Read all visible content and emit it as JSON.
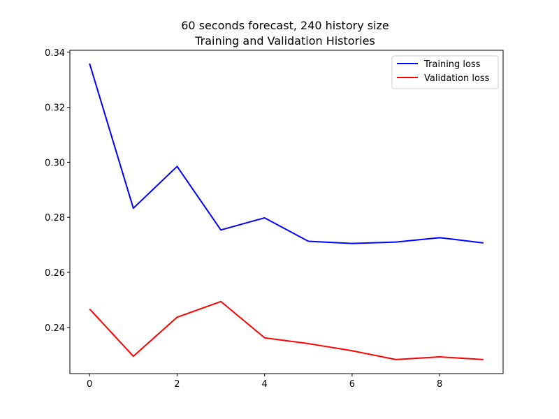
{
  "chart_data": {
    "type": "line",
    "title": "60 seconds forecast, 240 history size",
    "subtitle": "Training and Validation Histories",
    "xlabel": "",
    "ylabel": "",
    "x": [
      0,
      1,
      2,
      3,
      4,
      5,
      6,
      7,
      8,
      9
    ],
    "xlim": [
      -0.45,
      9.45
    ],
    "ylim": [
      0.2232,
      0.3407
    ],
    "x_ticks": [
      0,
      2,
      4,
      6,
      8
    ],
    "x_tick_labels": [
      "0",
      "2",
      "4",
      "6",
      "8"
    ],
    "y_ticks": [
      0.24,
      0.26,
      0.28,
      0.3,
      0.32,
      0.34
    ],
    "y_tick_labels": [
      "0.24",
      "0.26",
      "0.28",
      "0.30",
      "0.32",
      "0.34"
    ],
    "grid": false,
    "legend_position": "top-right",
    "series": [
      {
        "name": "Training loss",
        "color": "#0000ff",
        "values": [
          0.3359,
          0.2833,
          0.2985,
          0.2754,
          0.2798,
          0.2713,
          0.2705,
          0.271,
          0.2726,
          0.2707
        ]
      },
      {
        "name": "Validation loss",
        "color": "#ff0000",
        "values": [
          0.2467,
          0.2295,
          0.2437,
          0.2494,
          0.2362,
          0.2341,
          0.2315,
          0.2283,
          0.2293,
          0.2283
        ]
      }
    ]
  }
}
